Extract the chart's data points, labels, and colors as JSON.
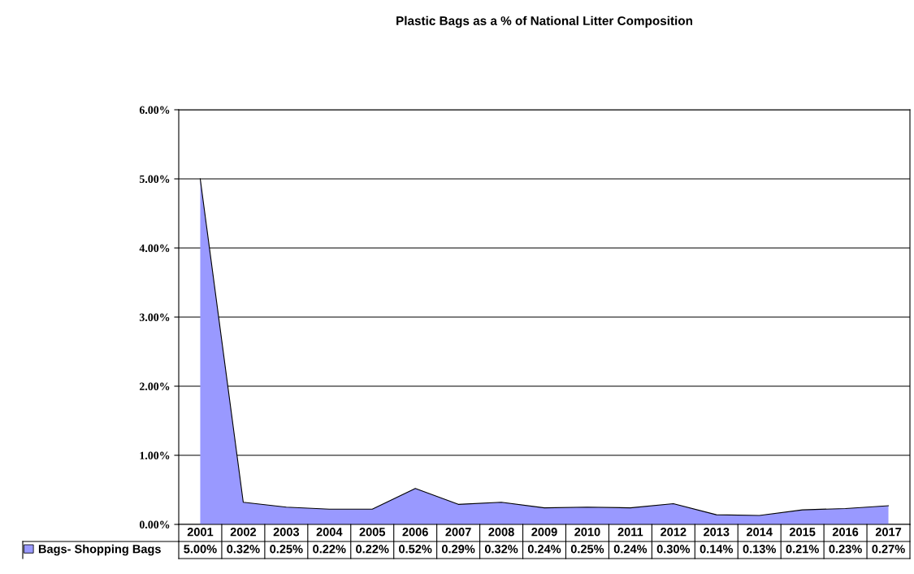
{
  "chart_data": {
    "type": "area",
    "title": "Plastic Bags as a % of National Litter Composition",
    "categories": [
      "2001",
      "2002",
      "2003",
      "2004",
      "2005",
      "2006",
      "2007",
      "2008",
      "2009",
      "2010",
      "2011",
      "2012",
      "2013",
      "2014",
      "2015",
      "2016",
      "2017"
    ],
    "series": [
      {
        "name": "Bags- Shopping Bags",
        "color": "#9999ff",
        "values": [
          5.0,
          0.32,
          0.25,
          0.22,
          0.22,
          0.52,
          0.29,
          0.32,
          0.24,
          0.25,
          0.24,
          0.3,
          0.14,
          0.13,
          0.21,
          0.23,
          0.27
        ],
        "value_labels": [
          "5.00%",
          "0.32%",
          "0.25%",
          "0.22%",
          "0.22%",
          "0.52%",
          "0.29%",
          "0.32%",
          "0.24%",
          "0.25%",
          "0.24%",
          "0.30%",
          "0.14%",
          "0.13%",
          "0.21%",
          "0.23%",
          "0.27%"
        ]
      }
    ],
    "ylim": [
      0,
      6
    ],
    "yticks": [
      {
        "value": 0,
        "label": "0.00%"
      },
      {
        "value": 1,
        "label": "1.00%"
      },
      {
        "value": 2,
        "label": "2.00%"
      },
      {
        "value": 3,
        "label": "3.00%"
      },
      {
        "value": 4,
        "label": "4.00%"
      },
      {
        "value": 5,
        "label": "5.00%"
      },
      {
        "value": 6,
        "label": "6.00%"
      }
    ],
    "grid": "y",
    "legend": "bottom left"
  }
}
